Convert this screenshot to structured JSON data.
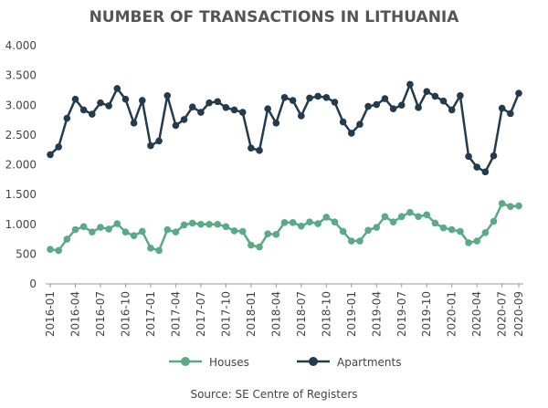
{
  "chart_data": {
    "type": "line",
    "title": "NUMBER OF TRANSACTIONS IN LITHUANIA",
    "source": "Source: SE Centre of Registers",
    "categories": [
      "2016-01",
      null,
      null,
      "2016-04",
      null,
      null,
      "2016-07",
      null,
      null,
      "2016-10",
      null,
      null,
      "2017-01",
      null,
      null,
      "2017-04",
      null,
      null,
      "2017-07",
      null,
      null,
      "2017-10",
      null,
      null,
      "2018-01",
      null,
      null,
      "2018-04",
      null,
      null,
      "2018-07",
      null,
      null,
      "2018-10",
      null,
      null,
      "2019-01",
      null,
      null,
      "2019-04",
      null,
      null,
      "2019-07",
      null,
      null,
      "2019-10",
      null,
      null,
      "2020-01",
      null,
      null,
      "2020-04",
      null,
      null,
      "2020-07",
      null,
      "2020-09"
    ],
    "series": [
      {
        "name": "Houses",
        "color": "#5aa987",
        "values": [
          580,
          560,
          750,
          910,
          960,
          870,
          950,
          920,
          1010,
          870,
          810,
          880,
          600,
          560,
          910,
          870,
          990,
          1020,
          1000,
          1000,
          1000,
          960,
          890,
          880,
          650,
          620,
          840,
          830,
          1030,
          1030,
          970,
          1040,
          1010,
          1120,
          1040,
          880,
          720,
          720,
          900,
          950,
          1130,
          1040,
          1130,
          1200,
          1130,
          1160,
          1020,
          940,
          910,
          880,
          690,
          720,
          860,
          1050,
          1350,
          1300,
          1310
        ]
      },
      {
        "name": "Apartments",
        "color": "#243b4e",
        "values": [
          2170,
          2300,
          2780,
          3100,
          2920,
          2850,
          3040,
          2990,
          3280,
          3100,
          2700,
          3080,
          2320,
          2400,
          3160,
          2660,
          2760,
          2970,
          2880,
          3040,
          3060,
          2960,
          2920,
          2880,
          2280,
          2240,
          2940,
          2700,
          3130,
          3080,
          2820,
          3120,
          3150,
          3130,
          3050,
          2720,
          2530,
          2680,
          2980,
          3010,
          3110,
          2940,
          3000,
          3350,
          2960,
          3230,
          3150,
          3070,
          2920,
          3160,
          2140,
          1960,
          1880,
          2150,
          2950,
          2860,
          3200
        ]
      }
    ],
    "ylim": [
      0,
      4000
    ],
    "yticks": [
      0,
      500,
      {
        "value": 1000,
        "label": "1.000"
      },
      {
        "value": 1500,
        "label": "1.500"
      },
      {
        "value": 2000,
        "label": "2.000"
      },
      {
        "value": 2500,
        "label": "2.500"
      },
      {
        "value": 3000,
        "label": "3.000"
      },
      {
        "value": 3500,
        "label": "3.500"
      },
      {
        "value": 4000,
        "label": "4.000"
      }
    ],
    "grid": false,
    "legend": "bottom"
  }
}
